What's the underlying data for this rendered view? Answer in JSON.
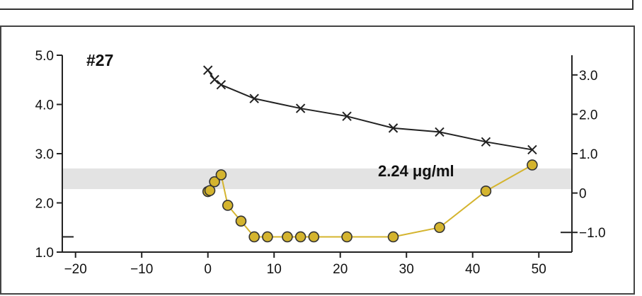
{
  "chart_data": {
    "type": "line",
    "title": "#27",
    "xlabel": "",
    "ylabel": "",
    "x_ticks": [
      "−20",
      "−10",
      "0",
      "10",
      "20",
      "30",
      "40",
      "50"
    ],
    "x_tick_values": [
      -20,
      -10,
      0,
      10,
      20,
      30,
      40,
      50
    ],
    "xlim": [
      -22,
      55
    ],
    "y_left_ticks": [
      "1.0",
      "2.0",
      "3.0",
      "4.0",
      "5.0"
    ],
    "y_left_tick_values": [
      1.0,
      2.0,
      3.0,
      4.0,
      5.0
    ],
    "ylim_left": [
      1.0,
      5.0
    ],
    "y_right_ticks": [
      "−1.0",
      "0",
      "1.0",
      "2.0",
      "3.0"
    ],
    "y_right_tick_values": [
      -1.0,
      0,
      1.0,
      2.0,
      3.0
    ],
    "ylim_right": [
      -1.5,
      3.5
    ],
    "band": {
      "ymin": 2.28,
      "ymax": 2.7,
      "color": "#e3e3e3",
      "label": "2.24 μg/ml"
    },
    "series": [
      {
        "axis": "right",
        "marker": "x",
        "color": "#222222",
        "x": [
          0,
          1,
          2,
          7,
          14,
          21,
          28,
          35,
          42,
          49
        ],
        "y": [
          3.12,
          2.88,
          2.75,
          2.4,
          2.15,
          1.95,
          1.65,
          1.55,
          1.3,
          1.1
        ]
      },
      {
        "axis": "left",
        "marker": "o",
        "color": "#d4b42e",
        "x": [
          0,
          0.3,
          1,
          2,
          3,
          5,
          7,
          9,
          12,
          14,
          16,
          21,
          28,
          35,
          42,
          49
        ],
        "y": [
          2.23,
          2.25,
          2.43,
          2.57,
          1.95,
          1.63,
          1.31,
          1.31,
          1.31,
          1.31,
          1.31,
          1.31,
          1.31,
          1.5,
          2.24,
          2.77
        ]
      }
    ],
    "reference_marks": {
      "left_y": 1.31,
      "right_y": -1.0
    }
  }
}
